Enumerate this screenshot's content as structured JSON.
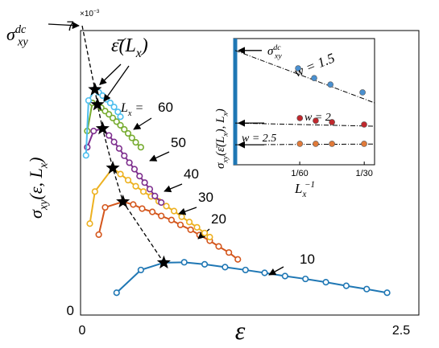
{
  "chart_data": [
    {
      "type": "line",
      "multiplier": {
        "base": "×10",
        "exp": "−3"
      },
      "xlabel": "ε",
      "ylabel": {
        "main": "σ",
        "sub": "xy",
        "open": "(ε, L",
        "sub2": "x",
        "close": ")"
      },
      "sigma_dc": {
        "main": "σ",
        "sup": "dc",
        "sub": "xy"
      },
      "xlim": [
        0,
        2.5
      ],
      "ylim": [
        0,
        7
      ],
      "xticks": [
        0,
        2.5
      ],
      "yticks": [
        0,
        7
      ],
      "legend_prefix": {
        "main": "L",
        "sub": "x",
        "eq": " ="
      },
      "series": [
        {
          "name": "10",
          "color": "#1f77b4",
          "x": [
            0.27,
            0.46,
            0.64,
            0.8,
            0.96,
            1.12,
            1.28,
            1.43,
            1.59,
            1.75,
            1.91,
            2.07,
            2.23,
            2.39
          ],
          "values": [
            0.43,
            0.99,
            1.17,
            1.18,
            1.13,
            1.06,
            0.99,
            0.92,
            0.84,
            0.77,
            0.69,
            0.6,
            0.52,
            0.43
          ]
        },
        {
          "name": "20",
          "color": "#d4561c",
          "x": [
            0.13,
            0.18,
            0.32,
            0.4,
            0.47,
            0.55,
            0.62,
            0.7,
            0.77,
            0.85,
            0.92,
            1.0,
            1.07,
            1.15,
            1.22
          ],
          "values": [
            1.86,
            2.53,
            2.67,
            2.6,
            2.5,
            2.42,
            2.32,
            2.22,
            2.1,
            1.98,
            1.85,
            1.71,
            1.57,
            1.42,
            1.25
          ]
        },
        {
          "name": "30",
          "color": "#edb120",
          "x": [
            0.06,
            0.1,
            0.24,
            0.3,
            0.36,
            0.42,
            0.48,
            0.54,
            0.6,
            0.66,
            0.72,
            0.78,
            0.84,
            0.9,
            0.96,
            1.0
          ],
          "values": [
            2.13,
            2.92,
            3.5,
            3.35,
            3.2,
            3.05,
            2.92,
            2.8,
            2.68,
            2.56,
            2.44,
            2.3,
            2.17,
            2.04,
            1.9,
            1.8
          ]
        },
        {
          "name": "40",
          "color": "#7e2f8e",
          "x": [
            0.04,
            0.09,
            0.16,
            0.21,
            0.25,
            0.29,
            0.33,
            0.37,
            0.41,
            0.45,
            0.49,
            0.53,
            0.57,
            0.62
          ],
          "values": [
            4.01,
            4.41,
            4.47,
            4.3,
            4.14,
            3.98,
            3.8,
            3.63,
            3.47,
            3.3,
            3.14,
            2.98,
            2.81,
            2.65
          ]
        },
        {
          "name": "50",
          "color": "#77ac30",
          "x": [
            0.04,
            0.08,
            0.12,
            0.15,
            0.18,
            0.21,
            0.24,
            0.27,
            0.3,
            0.33,
            0.36,
            0.39,
            0.42,
            0.46
          ],
          "values": [
            4.41,
            5.1,
            5.06,
            4.98,
            4.9,
            4.82,
            4.73,
            4.64,
            4.55,
            4.45,
            4.35,
            4.24,
            4.13,
            4.01
          ]
        },
        {
          "name": "60",
          "color": "#4dbeee",
          "x": [
            0.03,
            0.05,
            0.1,
            0.13,
            0.16,
            0.19,
            0.22,
            0.25,
            0.28,
            0.3
          ],
          "values": [
            3.81,
            5.16,
            5.43,
            5.36,
            5.28,
            5.19,
            5.1,
            5.0,
            4.88,
            4.76
          ]
        }
      ],
      "optimum": {
        "name": "ε̄(L",
        "sub": "x",
        "close": ")",
        "x": [
          0.1,
          0.12,
          0.16,
          0.24,
          0.32,
          0.64
        ],
        "values": [
          5.43,
          5.06,
          4.47,
          3.5,
          2.67,
          1.17
        ]
      }
    },
    {
      "type": "scatter",
      "xlabel": {
        "main": "L",
        "sub": "x",
        "sup": "−1"
      },
      "ylabel": {
        "main": "σ",
        "sub": "xy",
        "open": "(ε̄(L",
        "sub2": "x",
        "mid": "), L",
        "sub3": "x",
        "close": ")"
      },
      "sigma_dc": {
        "main": "σ",
        "sup": "dc",
        "sub": "xy"
      },
      "xlim": [
        0,
        0.036
      ],
      "ylim": [
        2.2,
        7.5
      ],
      "xticks": [
        {
          "value": 0.016667,
          "label": "1/60"
        },
        {
          "value": 0.033333,
          "label": "1/30"
        }
      ],
      "series": [
        {
          "name": "w = 1.5",
          "color": "#4a90d0",
          "x": [
            0.01625,
            0.0204,
            0.0246,
            0.0329
          ],
          "values": [
            6.25,
            5.84,
            5.57,
            5.24
          ],
          "fit": [
            7.0,
            4.8
          ]
        },
        {
          "name": "w = 2",
          "color": "#c0282d",
          "x": [
            0.0167,
            0.0208,
            0.025,
            0.0333
          ],
          "values": [
            4.16,
            4.05,
            3.99,
            3.89
          ],
          "fit": [
            3.95,
            3.82
          ]
        },
        {
          "name": "w = 2.5",
          "color": "#e07a3a",
          "x": [
            0.0167,
            0.0208,
            0.025,
            0.0333
          ],
          "values": [
            3.08,
            3.08,
            3.08,
            3.08
          ],
          "fit": [
            3.04,
            3.07
          ]
        }
      ]
    }
  ]
}
